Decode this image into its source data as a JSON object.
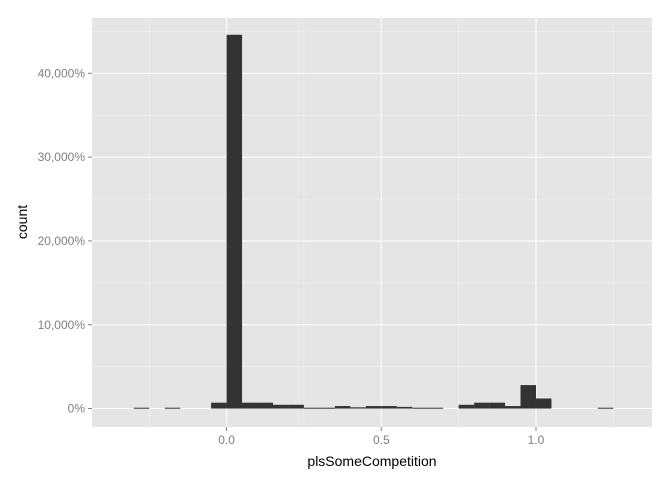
{
  "chart_data": {
    "type": "bar",
    "title": "",
    "xlabel": "plsSomeCompetition",
    "ylabel": "count",
    "xlim": [
      -0.435,
      1.375
    ],
    "ylim": [
      -2200,
      46600
    ],
    "x_ticks": [
      0.0,
      0.5,
      1.0
    ],
    "x_tick_labels": [
      "0.0",
      "0.5",
      "1.0"
    ],
    "y_ticks": [
      0,
      10000,
      20000,
      30000,
      40000
    ],
    "y_tick_labels": [
      "0%",
      "10,000%",
      "20,000%",
      "30,000%",
      "40,000%"
    ],
    "grid": true,
    "legend": "none",
    "bin_width": 0.05,
    "bins": [
      {
        "x": -0.3,
        "count": 100
      },
      {
        "x": -0.2,
        "count": 100
      },
      {
        "x": -0.1,
        "count": 0
      },
      {
        "x": -0.05,
        "count": 700
      },
      {
        "x": 0.0,
        "count": 44600
      },
      {
        "x": 0.05,
        "count": 700
      },
      {
        "x": 0.1,
        "count": 700
      },
      {
        "x": 0.15,
        "count": 450
      },
      {
        "x": 0.2,
        "count": 450
      },
      {
        "x": 0.25,
        "count": 100
      },
      {
        "x": 0.3,
        "count": 100
      },
      {
        "x": 0.35,
        "count": 300
      },
      {
        "x": 0.4,
        "count": 150
      },
      {
        "x": 0.45,
        "count": 300
      },
      {
        "x": 0.5,
        "count": 300
      },
      {
        "x": 0.55,
        "count": 200
      },
      {
        "x": 0.6,
        "count": 100
      },
      {
        "x": 0.65,
        "count": 100
      },
      {
        "x": 0.7,
        "count": 0
      },
      {
        "x": 0.75,
        "count": 450
      },
      {
        "x": 0.8,
        "count": 700
      },
      {
        "x": 0.85,
        "count": 700
      },
      {
        "x": 0.9,
        "count": 300
      },
      {
        "x": 0.95,
        "count": 2800
      },
      {
        "x": 1.0,
        "count": 1200
      },
      {
        "x": 1.05,
        "count": 0
      },
      {
        "x": 1.1,
        "count": 0
      },
      {
        "x": 1.15,
        "count": 0
      },
      {
        "x": 1.2,
        "count": 100
      }
    ],
    "colors": {
      "panel_background": "#e5e5e5",
      "grid_major": "#ffffff",
      "grid_minor": "#f2f2f2",
      "bar_fill": "#333333",
      "tick_label": "#7f7f7f",
      "axis_title": "#000000"
    }
  }
}
